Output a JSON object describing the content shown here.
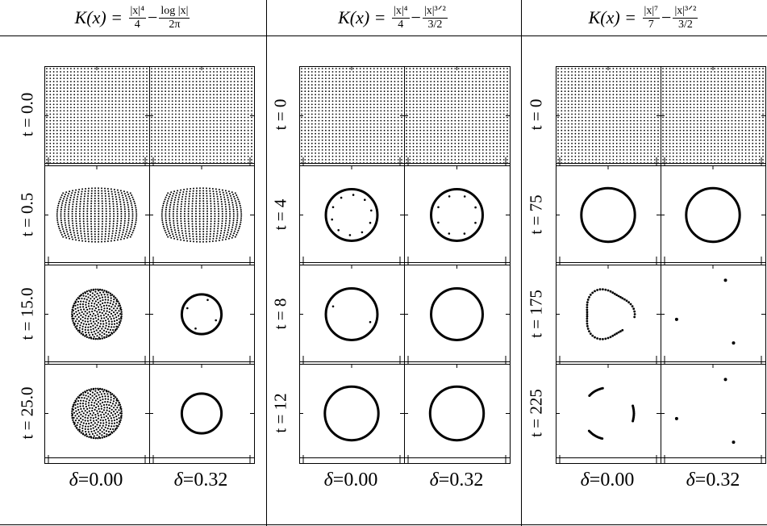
{
  "headers": [
    {
      "lhs": "K(x) =",
      "f1_num": "|x|⁴",
      "f1_den": "4",
      "op": "−",
      "f2_num": "log |x|",
      "f2_den": "2π"
    },
    {
      "lhs": "K(x) =",
      "f1_num": "|x|⁴",
      "f1_den": "4",
      "op": "−",
      "f2_num": "|x|³ᐟ²",
      "f2_den": "3/2"
    },
    {
      "lhs": "K(x) =",
      "f1_num": "|x|⁷",
      "f1_den": "7",
      "op": "−",
      "f2_num": "|x|³ᐟ²",
      "f2_den": "3/2"
    }
  ],
  "time_labels": [
    [
      "t = 0.0",
      "t = 0.5",
      "t = 15.0",
      "t = 25.0"
    ],
    [
      "t = 0",
      "t = 4",
      "t = 8",
      "t = 12"
    ],
    [
      "t = 0",
      "t = 75",
      "t = 175",
      "t = 225"
    ]
  ],
  "delta_symbol": "δ",
  "delta_labels": [
    "=0.00",
    "=0.32"
  ],
  "panels": [
    [
      {
        "shape": "grid"
      },
      {
        "shape": "grid"
      },
      {
        "shape": "bulge"
      },
      {
        "shape": "bulge"
      },
      {
        "shape": "disk",
        "r": 0.25
      },
      {
        "shape": "ring",
        "r": 0.2,
        "inner": 4
      },
      {
        "shape": "disk",
        "r": 0.25
      },
      {
        "shape": "ring",
        "r": 0.2,
        "inner": 0
      }
    ],
    [
      {
        "shape": "grid"
      },
      {
        "shape": "grid"
      },
      {
        "shape": "ring",
        "r": 0.26,
        "inner": 10
      },
      {
        "shape": "ring",
        "r": 0.26,
        "inner": 8
      },
      {
        "shape": "ring",
        "r": 0.26,
        "inner": 2
      },
      {
        "shape": "ring",
        "r": 0.26,
        "inner": 0
      },
      {
        "shape": "ring",
        "r": 0.27,
        "inner": 0
      },
      {
        "shape": "ring",
        "r": 0.27,
        "inner": 0
      }
    ],
    [
      {
        "shape": "grid"
      },
      {
        "shape": "grid"
      },
      {
        "shape": "ring",
        "r": 0.27,
        "inner": 0
      },
      {
        "shape": "ring",
        "r": 0.27,
        "inner": 0
      },
      {
        "shape": "triangle"
      },
      {
        "shape": "points3"
      },
      {
        "shape": "arcs3"
      },
      {
        "shape": "points3"
      }
    ]
  ]
}
